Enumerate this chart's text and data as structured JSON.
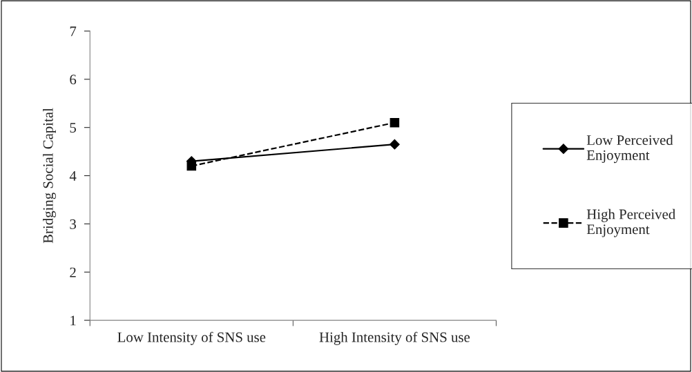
{
  "chart_data": {
    "type": "line",
    "ylabel": "Bridging Social Capital",
    "categories": [
      "Low Intensity of SNS use",
      "High Intensity of SNS use"
    ],
    "series": [
      {
        "name": "Low Perceived Enjoyment",
        "color": "#000000",
        "values": [
          4.3,
          4.65
        ],
        "marker": "diamond",
        "line_style": "solid"
      },
      {
        "name": "High Perceived Enjoyment",
        "color": "#000000",
        "values": [
          4.2,
          5.1
        ],
        "marker": "square",
        "line_style": "dashed"
      }
    ],
    "ylim": [
      1,
      7
    ],
    "yticks": [
      1,
      2,
      3,
      4,
      5,
      6,
      7
    ],
    "grid": false,
    "legend": "right"
  }
}
